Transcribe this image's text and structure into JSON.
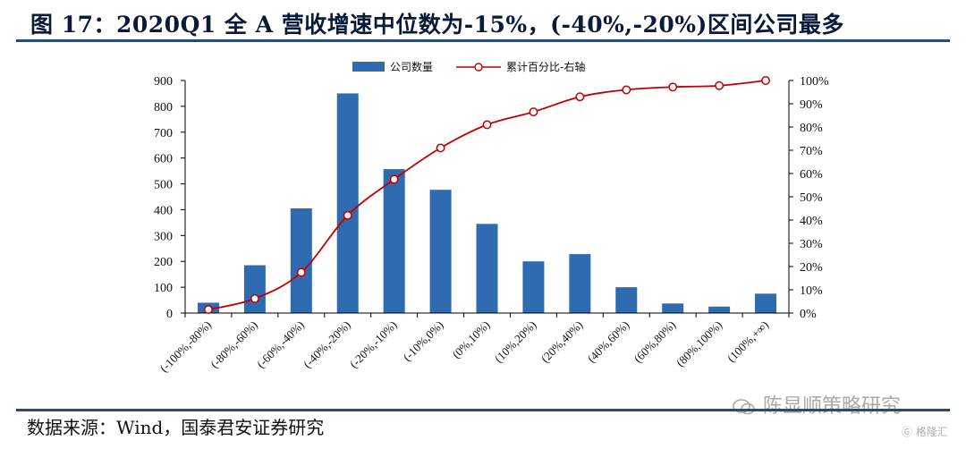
{
  "title": "图 17：2020Q1 全 A 营收增速中位数为-15%，(-40%,-20%)区间公司最多",
  "source": "数据来源：Wind，国泰君安证券研究",
  "watermark": {
    "text": "陈显顺策略研究",
    "brand": "格隆汇"
  },
  "colors": {
    "bar": "#2e6bb0",
    "line": "#c00000",
    "rule": "#2a4a78",
    "axis": "#000000"
  },
  "chart_data": {
    "type": "bar",
    "categories": [
      "(-100%,-80%)",
      "(-80%,-60%)",
      "(-60%,-40%)",
      "(-40%,-20%)",
      "(-20%,-10%)",
      "(-10%,0%)",
      "(0%,10%)",
      "(10%,20%)",
      "(20%,40%)",
      "(40%,60%)",
      "(60%,80%)",
      "(80%,100%)",
      "(100%,+∞)"
    ],
    "series": [
      {
        "name": "公司数量",
        "type": "bar",
        "axis": "left",
        "values": [
          40,
          185,
          405,
          850,
          557,
          477,
          345,
          200,
          228,
          100,
          37,
          25,
          75
        ]
      },
      {
        "name": "累计百分比-右轴",
        "type": "line",
        "axis": "right",
        "values": [
          1.5,
          6.2,
          17.5,
          42,
          57.5,
          71,
          81,
          86.5,
          93,
          96,
          97.2,
          97.8,
          100
        ]
      }
    ],
    "ylim_left": [
      0,
      900
    ],
    "ylim_right": [
      0,
      100
    ],
    "yticks_left": [
      "0",
      "100",
      "200",
      "300",
      "400",
      "500",
      "600",
      "700",
      "800",
      "900"
    ],
    "yticks_right": [
      "0%",
      "10%",
      "20%",
      "30%",
      "40%",
      "50%",
      "60%",
      "70%",
      "80%",
      "90%",
      "100%"
    ],
    "legend_position": "top",
    "grid": false
  }
}
